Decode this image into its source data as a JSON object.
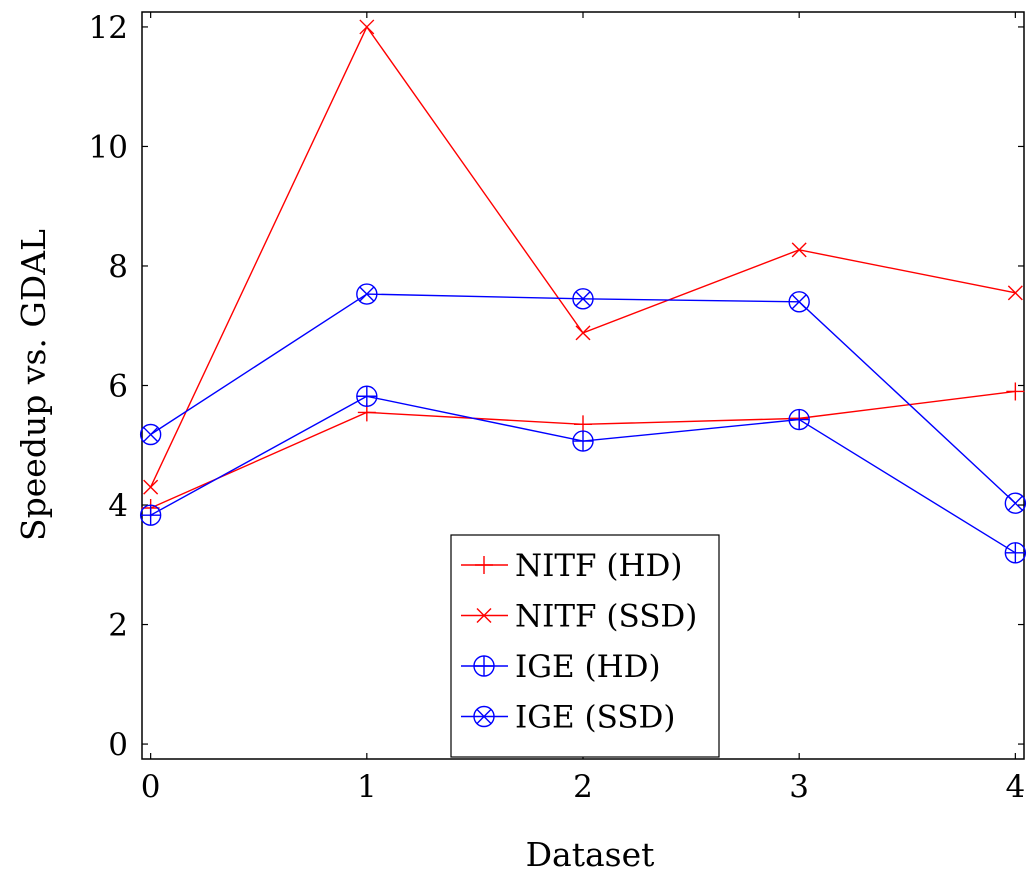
{
  "chart_data": {
    "type": "line",
    "title": "",
    "xlabel": "Dataset",
    "ylabel": "Speedup vs. GDAL",
    "x": [
      0,
      1,
      2,
      3,
      4
    ],
    "xticks": [
      "0",
      "1",
      "2",
      "3",
      "4"
    ],
    "yticks": [
      "0",
      "2",
      "4",
      "6",
      "8",
      "10",
      "12"
    ],
    "xlim": [
      -0.04,
      4.04
    ],
    "ylim": [
      -0.25,
      12.25
    ],
    "grid": false,
    "legend_position": "bottom-center",
    "series": [
      {
        "name": "NITF (HD)",
        "values": [
          3.95,
          5.55,
          5.35,
          5.45,
          5.9
        ],
        "color": "#ff0000",
        "marker": "plus"
      },
      {
        "name": "NITF (SSD)",
        "values": [
          4.3,
          12.0,
          6.88,
          8.27,
          7.55
        ],
        "color": "#ff0000",
        "marker": "cross"
      },
      {
        "name": "IGE (HD)",
        "values": [
          3.83,
          5.82,
          5.07,
          5.43,
          3.2
        ],
        "color": "#0000ff",
        "marker": "oplus"
      },
      {
        "name": "IGE (SSD)",
        "values": [
          5.18,
          7.53,
          7.45,
          7.4,
          4.03
        ],
        "color": "#0000ff",
        "marker": "otimes"
      }
    ]
  }
}
